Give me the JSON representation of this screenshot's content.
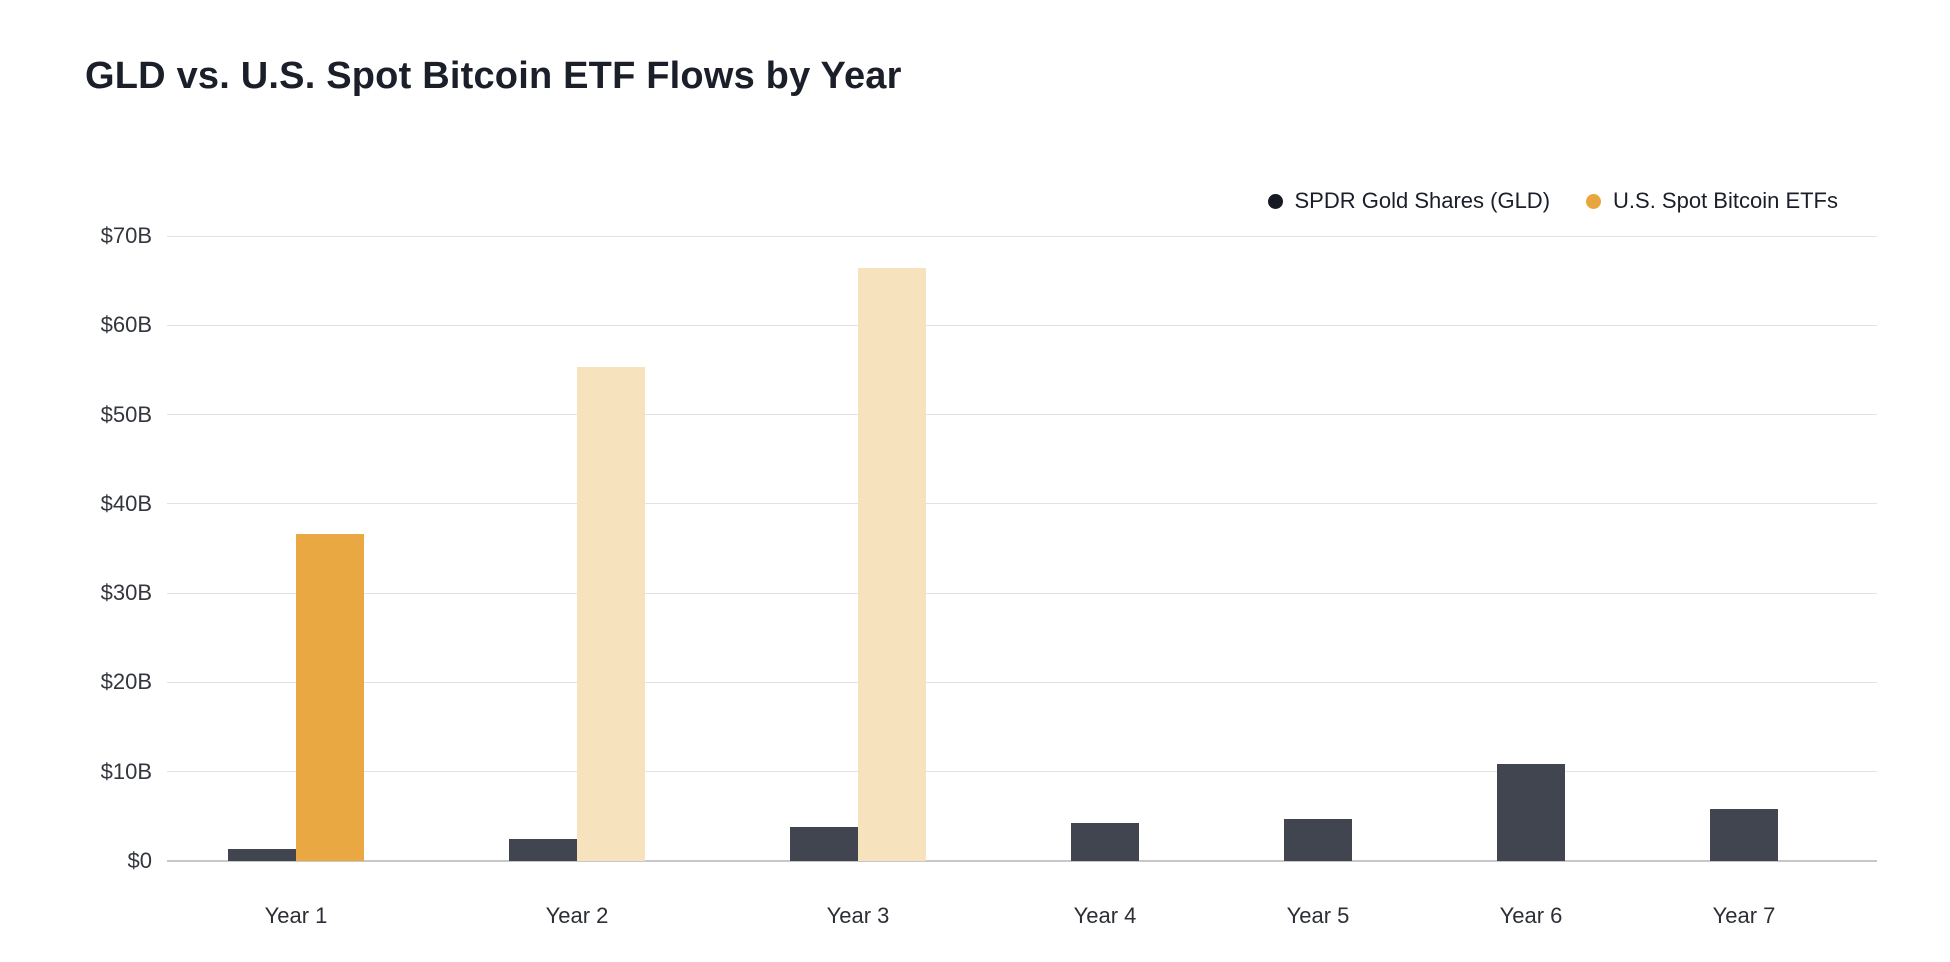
{
  "title": "GLD vs. U.S. Spot Bitcoin ETF Flows by Year",
  "legend": {
    "items": [
      {
        "label": "SPDR Gold Shares (GLD)",
        "dot_color": "#161a23"
      },
      {
        "label": "U.S. Spot Bitcoin ETFs",
        "dot_color": "#e9a63e"
      }
    ]
  },
  "chart_data": {
    "type": "bar",
    "title": "GLD vs. U.S. Spot Bitcoin ETF Flows by Year",
    "categories": [
      "Year 1",
      "Year 2",
      "Year 3",
      "Year 4",
      "Year 5",
      "Year 6",
      "Year 7"
    ],
    "series": [
      {
        "key": "gld",
        "name": "SPDR Gold Shares (GLD)",
        "color": "#41454f",
        "values": [
          1.3,
          2.5,
          3.8,
          4.2,
          4.7,
          10.9,
          5.8
        ],
        "projected": [
          false,
          false,
          false,
          false,
          false,
          false,
          false
        ]
      },
      {
        "key": "btc",
        "name": "U.S. Spot Bitcoin ETFs",
        "color": "#eaa843",
        "projected_color": "#f6e3be",
        "values": [
          36.6,
          55.3,
          66.4,
          null,
          null,
          null,
          null
        ],
        "projected": [
          false,
          true,
          true,
          false,
          false,
          false,
          false
        ]
      }
    ],
    "y_ticks": [
      {
        "label": "$0",
        "value": 0
      },
      {
        "label": "$10B",
        "value": 10
      },
      {
        "label": "$20B",
        "value": 20
      },
      {
        "label": "$30B",
        "value": 30
      },
      {
        "label": "$40B",
        "value": 40
      },
      {
        "label": "$50B",
        "value": 50
      },
      {
        "label": "$60B",
        "value": 60
      },
      {
        "label": "$70B",
        "value": 70
      }
    ],
    "ylim": [
      0,
      70
    ],
    "units": "USD billions",
    "grid": "horizontal",
    "legend_position": "top-right"
  }
}
